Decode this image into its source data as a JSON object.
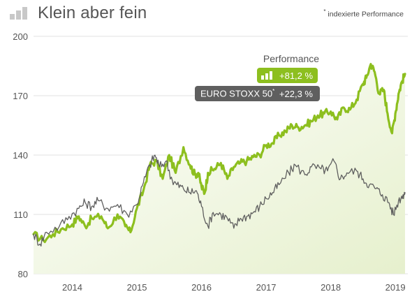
{
  "header": {
    "title": "Klein aber fein",
    "icon": "bar-chart-icon"
  },
  "note": {
    "marker": "*",
    "text": " indexierte Performance"
  },
  "legend": {
    "title": "Performance",
    "items": [
      {
        "name": "",
        "value": "+81,2 %",
        "color": "#8dbf1f",
        "icon": "bar-chart-icon"
      },
      {
        "name": "EURO STOXX 50",
        "name_sup": "*",
        "value": "+22,3 %",
        "color": "#5f5f5f"
      }
    ]
  },
  "chart_data": {
    "type": "line",
    "title": "Klein aber fein",
    "xlabel": "",
    "ylabel": "",
    "ylim": [
      80,
      200
    ],
    "yticks": [
      80,
      110,
      140,
      170,
      200
    ],
    "xlim": [
      2013.4,
      2019.15
    ],
    "xticks": [
      {
        "label": "2014",
        "x": 2014.0
      },
      {
        "label": "2015",
        "x": 2015.0
      },
      {
        "label": "2016",
        "x": 2016.0
      },
      {
        "label": "2017",
        "x": 2017.0
      },
      {
        "label": "2018",
        "x": 2018.0
      },
      {
        "label": "2019",
        "x": 2019.0
      }
    ],
    "grid": "horizontal",
    "series": [
      {
        "name": "",
        "color": "#8dbf1f",
        "area_fill": true,
        "points": [
          [
            2013.4,
            100
          ],
          [
            2013.55,
            97
          ],
          [
            2013.7,
            100
          ],
          [
            2013.85,
            103
          ],
          [
            2014.0,
            105
          ],
          [
            2014.1,
            109
          ],
          [
            2014.2,
            104
          ],
          [
            2014.3,
            108
          ],
          [
            2014.45,
            109
          ],
          [
            2014.55,
            103
          ],
          [
            2014.7,
            110
          ],
          [
            2014.82,
            104
          ],
          [
            2014.9,
            101
          ],
          [
            2015.0,
            113
          ],
          [
            2015.1,
            122
          ],
          [
            2015.2,
            135
          ],
          [
            2015.3,
            137
          ],
          [
            2015.4,
            128
          ],
          [
            2015.5,
            140
          ],
          [
            2015.6,
            131
          ],
          [
            2015.72,
            144
          ],
          [
            2015.82,
            135
          ],
          [
            2015.9,
            130
          ],
          [
            2015.95,
            131
          ],
          [
            2016.0,
            124
          ],
          [
            2016.05,
            121
          ],
          [
            2016.1,
            131
          ],
          [
            2016.2,
            133
          ],
          [
            2016.3,
            136
          ],
          [
            2016.4,
            128
          ],
          [
            2016.5,
            134
          ],
          [
            2016.6,
            136
          ],
          [
            2016.7,
            137
          ],
          [
            2016.8,
            139
          ],
          [
            2016.9,
            140
          ],
          [
            2017.0,
            145
          ],
          [
            2017.1,
            146
          ],
          [
            2017.2,
            150
          ],
          [
            2017.3,
            152
          ],
          [
            2017.4,
            155
          ],
          [
            2017.5,
            154
          ],
          [
            2017.6,
            155
          ],
          [
            2017.7,
            157
          ],
          [
            2017.8,
            160
          ],
          [
            2017.9,
            161
          ],
          [
            2018.0,
            162
          ],
          [
            2018.1,
            158
          ],
          [
            2018.2,
            164
          ],
          [
            2018.3,
            163
          ],
          [
            2018.4,
            168
          ],
          [
            2018.5,
            176
          ],
          [
            2018.55,
            179
          ],
          [
            2018.62,
            186
          ],
          [
            2018.68,
            182
          ],
          [
            2018.75,
            171
          ],
          [
            2018.82,
            173
          ],
          [
            2018.88,
            161
          ],
          [
            2018.95,
            151
          ],
          [
            2019.0,
            161
          ],
          [
            2019.05,
            171
          ],
          [
            2019.1,
            177
          ],
          [
            2019.15,
            181
          ]
        ]
      },
      {
        "name": "EURO STOXX 50",
        "color": "#5f5f5f",
        "area_fill": false,
        "points": [
          [
            2013.4,
            100
          ],
          [
            2013.5,
            95
          ],
          [
            2013.6,
            101
          ],
          [
            2013.8,
            104
          ],
          [
            2013.95,
            109
          ],
          [
            2014.1,
            113
          ],
          [
            2014.2,
            116
          ],
          [
            2014.3,
            114
          ],
          [
            2014.4,
            117
          ],
          [
            2014.55,
            113
          ],
          [
            2014.7,
            115
          ],
          [
            2014.85,
            110
          ],
          [
            2015.0,
            115
          ],
          [
            2015.1,
            126
          ],
          [
            2015.2,
            135
          ],
          [
            2015.28,
            140
          ],
          [
            2015.35,
            134
          ],
          [
            2015.45,
            137
          ],
          [
            2015.55,
            127
          ],
          [
            2015.62,
            125
          ],
          [
            2015.72,
            123
          ],
          [
            2015.82,
            121
          ],
          [
            2015.92,
            122
          ],
          [
            2016.0,
            114
          ],
          [
            2016.1,
            104
          ],
          [
            2016.18,
            111
          ],
          [
            2016.3,
            110
          ],
          [
            2016.4,
            108
          ],
          [
            2016.5,
            103
          ],
          [
            2016.6,
            108
          ],
          [
            2016.7,
            109
          ],
          [
            2016.8,
            111
          ],
          [
            2016.9,
            114
          ],
          [
            2017.0,
            118
          ],
          [
            2017.1,
            121
          ],
          [
            2017.2,
            125
          ],
          [
            2017.35,
            131
          ],
          [
            2017.45,
            135
          ],
          [
            2017.6,
            130
          ],
          [
            2017.7,
            134
          ],
          [
            2017.85,
            133
          ],
          [
            2017.95,
            132
          ],
          [
            2018.05,
            137
          ],
          [
            2018.15,
            128
          ],
          [
            2018.25,
            131
          ],
          [
            2018.4,
            132
          ],
          [
            2018.5,
            128
          ],
          [
            2018.6,
            125
          ],
          [
            2018.7,
            123
          ],
          [
            2018.8,
            120
          ],
          [
            2018.9,
            116
          ],
          [
            2018.97,
            110
          ],
          [
            2019.05,
            117
          ],
          [
            2019.12,
            120
          ],
          [
            2019.15,
            121
          ]
        ]
      }
    ]
  }
}
